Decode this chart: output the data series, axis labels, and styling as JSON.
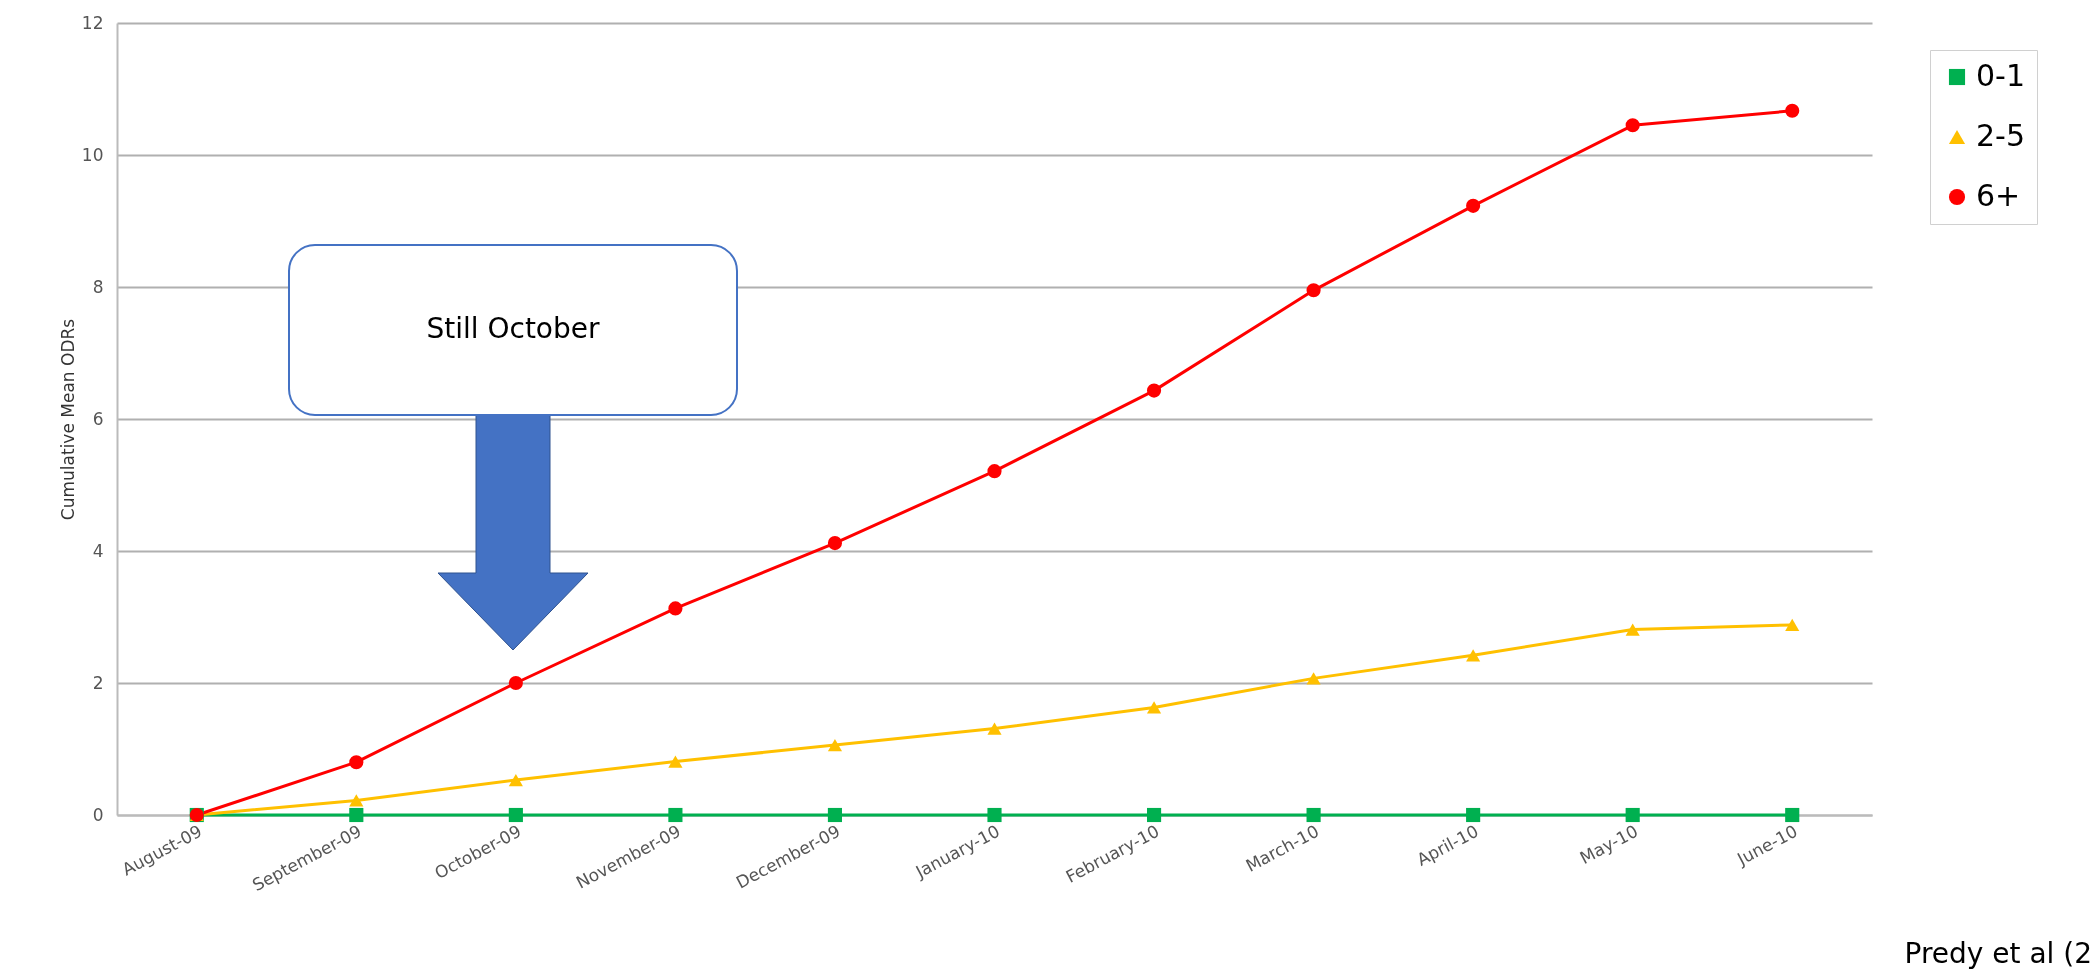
{
  "chart_data": {
    "type": "line",
    "ylabel": "Cumulative Mean ODRs",
    "categories": [
      "August-09",
      "September-09",
      "October-09",
      "November-09",
      "December-09",
      "January-10",
      "February-10",
      "March-10",
      "April-10",
      "May-10",
      "June-10"
    ],
    "series": [
      {
        "name": "0-1",
        "color": "#00b050",
        "marker": "square",
        "values": [
          0,
          0,
          0,
          0,
          0,
          0,
          0,
          0,
          0,
          0,
          0
        ]
      },
      {
        "name": "2-5",
        "color": "#ffc000",
        "marker": "triangle",
        "values": [
          0,
          0.22,
          0.53,
          0.81,
          1.06,
          1.31,
          1.63,
          2.07,
          2.42,
          2.81,
          2.88
        ]
      },
      {
        "name": "6+",
        "color": "#ff0000",
        "marker": "circle",
        "values": [
          0,
          0.8,
          2.0,
          3.13,
          4.12,
          5.21,
          6.43,
          7.95,
          9.23,
          10.45,
          10.67
        ]
      }
    ],
    "ylim": [
      0,
      12
    ],
    "yticks": [
      0,
      2,
      4,
      6,
      8,
      10,
      12
    ],
    "grid": "y",
    "legend": "top right",
    "line_style": "solid",
    "annotations": [
      "Still October",
      "Predy et al (2"
    ]
  }
}
